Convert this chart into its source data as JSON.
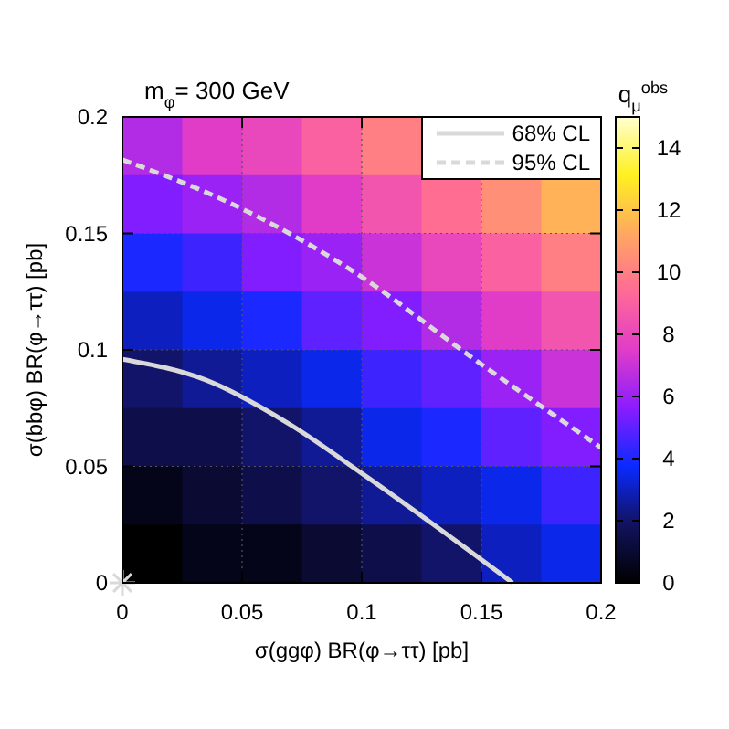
{
  "chart_data": {
    "type": "heatmap",
    "title": "m$_{φ}$= 300 GeV",
    "xlabel": "σ(ggφ) BR(φ→ττ) [pb]",
    "ylabel": "σ(bbφ) BR(φ→ττ) [pb]",
    "clabel": "q$_{μ}$$^{obs}$",
    "xlim": [
      0,
      0.2
    ],
    "ylim": [
      0,
      0.2
    ],
    "xticks": [
      0,
      0.05,
      0.1,
      0.15,
      0.2
    ],
    "yticks": [
      0,
      0.05,
      0.1,
      0.15,
      0.2
    ],
    "clim": [
      0,
      15
    ],
    "cticks": [
      0,
      2,
      4,
      6,
      8,
      10,
      12,
      14
    ],
    "cells": [
      [
        6.5,
        7.5,
        8,
        9,
        10,
        null,
        null,
        null
      ],
      [
        5.5,
        6,
        6.5,
        7.5,
        8.5,
        9.5,
        10.5,
        11.5
      ],
      [
        4,
        4.5,
        5.5,
        6,
        7,
        8,
        9,
        10
      ],
      [
        3,
        3.5,
        4,
        5,
        5.5,
        6.5,
        7.5,
        8.5
      ],
      [
        2,
        2.5,
        3,
        3.5,
        4.5,
        5,
        6,
        7
      ],
      [
        1.5,
        1.5,
        2,
        2.5,
        3.5,
        4,
        5,
        5.5
      ],
      [
        0.5,
        1,
        1.5,
        2,
        2.5,
        3,
        3.5,
        4.5
      ],
      [
        0,
        0.5,
        0.5,
        1,
        1.5,
        2,
        3,
        3.5
      ]
    ],
    "series": [
      {
        "type": "line",
        "name": "68% CL",
        "color": "#d9d9d9",
        "line_style": "solid",
        "x": [
          0,
          0.035,
          0.07,
          0.1,
          0.13,
          0.163
        ],
        "values": [
          0.096,
          0.087,
          0.068,
          0.047,
          0.025,
          0
        ]
      },
      {
        "type": "line",
        "name": "95% CL",
        "color": "#d9d9d9",
        "line_style": "dashed",
        "x": [
          0,
          0.045,
          0.096,
          0.147,
          0.2
        ],
        "values": [
          0.1816,
          0.163,
          0.134,
          0.096,
          0.058
        ]
      },
      {
        "type": "scatter",
        "color": "#d9d9d9",
        "marker": "cross",
        "x": [
          0
        ],
        "values": [
          0
        ]
      }
    ],
    "grid": true,
    "legend": "top right"
  }
}
